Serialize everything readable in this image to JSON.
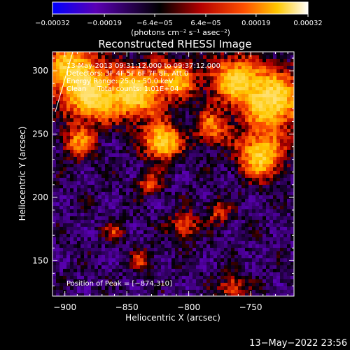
{
  "chart_data": {
    "type": "heatmap",
    "title": "Reconstructed RHESSI Image",
    "xlabel": "Heliocentric X (arcsec)",
    "ylabel": "Heliocentric Y (arcsec)",
    "xlim": [
      -910,
      -715
    ],
    "ylim": [
      122,
      315
    ],
    "x_ticks": [
      -900,
      -850,
      -800,
      -750
    ],
    "x_tick_labels": [
      "−900",
      "−850",
      "−800",
      "−750"
    ],
    "y_ticks": [
      150,
      200,
      250,
      300
    ],
    "y_tick_labels": [
      "150",
      "200",
      "250",
      "300"
    ],
    "colorbar": {
      "range": [
        -0.00032,
        0.00032
      ],
      "ticks": [
        -0.00032,
        -0.00019,
        -6.4e-05,
        6.4e-05,
        0.00019,
        0.00032
      ],
      "tick_labels": [
        "−0.00032",
        "−0.00019",
        "−6.4e−05",
        "6.4e−05",
        "0.00019",
        "0.00032"
      ],
      "label": "(photons cm⁻² s⁻¹ asec⁻²)",
      "colors": [
        "#0000ff",
        "#5a00b4",
        "#000000",
        "#c80000",
        "#ff6400",
        "#ffd200",
        "#ffffff"
      ]
    },
    "annotations": [
      "13-May-2013 09:31:12.000 to 09:37:12.000",
      "Detectors: 3F 4F 5F 6F 7F 8F, Att 0",
      "Energy Range: 25.0 - 50.0 keV",
      "Clean     Total counts: 1.01E+04"
    ],
    "peak_label": "Position of Peak = [−874,310]",
    "peak": [
      -874,
      310
    ],
    "grid": false
  },
  "footer": {
    "timestamp": "13−May−2022 23:56"
  }
}
